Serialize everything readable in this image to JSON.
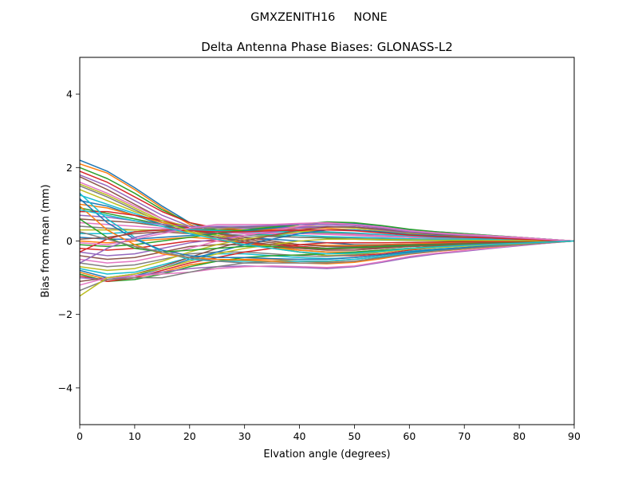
{
  "figure": {
    "suptitle": "GMXZENITH16     NONE"
  },
  "chart_data": {
    "type": "line",
    "title": "Delta Antenna Phase Biases: GLONASS-L2",
    "xlabel": "Elvation angle (degrees)",
    "ylabel": "Bias from mean (mm)",
    "xlim": [
      0,
      90
    ],
    "ylim": [
      -5,
      5
    ],
    "xticks": [
      0,
      10,
      20,
      30,
      40,
      50,
      60,
      70,
      80,
      90
    ],
    "xtick_labels": [
      "0",
      "10",
      "20",
      "30",
      "40",
      "50",
      "60",
      "70",
      "80",
      "90"
    ],
    "yticks": [
      -4,
      -2,
      0,
      2,
      4
    ],
    "ytick_labels": [
      "−4",
      "−2",
      "0",
      "2",
      "4"
    ],
    "grid": false,
    "x": [
      0,
      5,
      10,
      15,
      20,
      25,
      30,
      35,
      40,
      45,
      50,
      55,
      60,
      65,
      70,
      75,
      80,
      85,
      90
    ],
    "colors": [
      "#1f77b4",
      "#ff7f0e",
      "#2ca02c",
      "#d62728",
      "#9467bd",
      "#8c564b",
      "#e377c2",
      "#7f7f7f",
      "#bcbd22",
      "#17becf"
    ],
    "series": [
      {
        "values": [
          2.2,
          1.9,
          1.45,
          0.95,
          0.5,
          0.25,
          0.1,
          0.05,
          0.0,
          -0.05,
          -0.1,
          -0.1,
          -0.08,
          -0.06,
          -0.05,
          -0.04,
          -0.02,
          -0.01,
          0
        ]
      },
      {
        "values": [
          2.1,
          1.85,
          1.4,
          0.9,
          0.45,
          0.2,
          0.05,
          -0.05,
          -0.1,
          -0.12,
          -0.12,
          -0.1,
          -0.08,
          -0.06,
          -0.05,
          -0.04,
          -0.03,
          -0.01,
          0
        ]
      },
      {
        "values": [
          2.0,
          1.7,
          1.3,
          0.85,
          0.5,
          0.3,
          0.2,
          0.15,
          0.1,
          0.08,
          0.05,
          0.03,
          0.02,
          0.01,
          0.0,
          0.0,
          0.0,
          0.0,
          0
        ]
      },
      {
        "values": [
          1.9,
          1.6,
          1.2,
          0.8,
          0.5,
          0.35,
          0.3,
          0.3,
          0.28,
          0.25,
          0.2,
          0.15,
          0.1,
          0.08,
          0.05,
          0.04,
          0.03,
          0.01,
          0
        ]
      },
      {
        "values": [
          1.8,
          1.5,
          1.1,
          0.7,
          0.4,
          0.2,
          0.1,
          0.0,
          -0.1,
          -0.15,
          -0.18,
          -0.15,
          -0.12,
          -0.1,
          -0.08,
          -0.05,
          -0.03,
          -0.01,
          0
        ]
      },
      {
        "values": [
          1.75,
          1.4,
          1.0,
          0.6,
          0.3,
          0.15,
          0.05,
          -0.05,
          -0.15,
          -0.2,
          -0.2,
          -0.18,
          -0.15,
          -0.12,
          -0.1,
          -0.07,
          -0.05,
          -0.02,
          0
        ]
      },
      {
        "values": [
          1.6,
          1.3,
          0.95,
          0.6,
          0.35,
          0.25,
          0.22,
          0.22,
          0.2,
          0.18,
          0.15,
          0.12,
          0.1,
          0.08,
          0.06,
          0.05,
          0.03,
          0.01,
          0
        ]
      },
      {
        "values": [
          1.5,
          1.2,
          0.85,
          0.5,
          0.3,
          0.2,
          0.15,
          0.12,
          0.1,
          0.1,
          0.08,
          0.07,
          0.05,
          0.05,
          0.04,
          0.03,
          0.02,
          0.01,
          0
        ]
      },
      {
        "values": [
          1.4,
          1.1,
          0.8,
          0.55,
          0.4,
          0.35,
          0.35,
          0.38,
          0.4,
          0.4,
          0.35,
          0.28,
          0.2,
          0.15,
          0.12,
          0.1,
          0.07,
          0.03,
          0
        ]
      },
      {
        "values": [
          1.25,
          1.0,
          0.75,
          0.5,
          0.35,
          0.25,
          0.2,
          0.18,
          0.15,
          0.12,
          0.1,
          0.08,
          0.06,
          0.05,
          0.04,
          0.03,
          0.02,
          0.01,
          0
        ]
      },
      {
        "values": [
          1.1,
          0.95,
          0.7,
          0.45,
          0.25,
          0.1,
          -0.05,
          -0.15,
          -0.25,
          -0.3,
          -0.3,
          -0.25,
          -0.2,
          -0.15,
          -0.12,
          -0.08,
          -0.05,
          -0.02,
          0
        ]
      },
      {
        "values": [
          1.0,
          0.9,
          0.7,
          0.5,
          0.35,
          0.3,
          0.3,
          0.32,
          0.35,
          0.35,
          0.3,
          0.25,
          0.18,
          0.15,
          0.12,
          0.1,
          0.07,
          0.03,
          0
        ]
      },
      {
        "values": [
          0.9,
          0.75,
          0.6,
          0.45,
          0.35,
          0.3,
          0.28,
          0.27,
          0.25,
          0.22,
          0.18,
          0.15,
          0.12,
          0.1,
          0.08,
          0.06,
          0.04,
          0.02,
          0
        ]
      },
      {
        "values": [
          0.8,
          0.8,
          0.7,
          0.55,
          0.35,
          0.15,
          0.0,
          -0.15,
          -0.3,
          -0.4,
          -0.4,
          -0.35,
          -0.25,
          -0.18,
          -0.12,
          -0.08,
          -0.05,
          -0.02,
          0
        ]
      },
      {
        "values": [
          0.7,
          0.65,
          0.55,
          0.45,
          0.4,
          0.38,
          0.35,
          0.35,
          0.38,
          0.4,
          0.38,
          0.3,
          0.22,
          0.18,
          0.15,
          0.12,
          0.08,
          0.04,
          0
        ]
      },
      {
        "values": [
          0.6,
          0.55,
          0.5,
          0.4,
          0.3,
          0.2,
          0.1,
          0.0,
          -0.1,
          -0.15,
          -0.15,
          -0.12,
          -0.1,
          -0.08,
          -0.06,
          -0.04,
          -0.03,
          -0.01,
          0
        ]
      },
      {
        "values": [
          0.5,
          0.45,
          0.4,
          0.35,
          0.3,
          0.25,
          0.2,
          0.2,
          0.2,
          0.2,
          0.18,
          0.15,
          0.12,
          0.1,
          0.08,
          0.06,
          0.04,
          0.02,
          0
        ]
      },
      {
        "values": [
          0.4,
          0.35,
          0.3,
          0.3,
          0.32,
          0.35,
          0.38,
          0.4,
          0.45,
          0.5,
          0.48,
          0.4,
          0.3,
          0.22,
          0.18,
          0.14,
          0.1,
          0.05,
          0
        ]
      },
      {
        "values": [
          0.3,
          0.3,
          0.3,
          0.28,
          0.25,
          0.15,
          0.0,
          -0.15,
          -0.3,
          -0.4,
          -0.38,
          -0.3,
          -0.2,
          -0.15,
          -0.1,
          -0.07,
          -0.05,
          -0.02,
          0
        ]
      },
      {
        "values": [
          0.2,
          0.2,
          0.25,
          0.3,
          0.3,
          0.28,
          0.25,
          0.25,
          0.25,
          0.25,
          0.22,
          0.18,
          0.14,
          0.1,
          0.08,
          0.06,
          0.04,
          0.02,
          0
        ]
      },
      {
        "values": [
          0.1,
          0.05,
          0.05,
          0.1,
          0.15,
          0.2,
          0.28,
          0.35,
          0.45,
          0.5,
          0.48,
          0.4,
          0.3,
          0.25,
          0.2,
          0.15,
          0.1,
          0.05,
          0
        ]
      },
      {
        "values": [
          0.0,
          -0.05,
          0.0,
          0.05,
          0.1,
          0.05,
          -0.05,
          -0.15,
          -0.25,
          -0.3,
          -0.3,
          -0.25,
          -0.2,
          -0.15,
          -0.1,
          -0.07,
          -0.05,
          -0.02,
          0
        ]
      },
      {
        "values": [
          -0.1,
          -0.15,
          -0.1,
          0.0,
          0.1,
          0.2,
          0.3,
          0.38,
          0.45,
          0.52,
          0.5,
          0.42,
          0.32,
          0.25,
          0.2,
          0.15,
          0.1,
          0.05,
          0
        ]
      },
      {
        "values": [
          -0.2,
          -0.25,
          -0.2,
          -0.1,
          0.0,
          0.0,
          -0.05,
          -0.1,
          -0.15,
          -0.2,
          -0.2,
          -0.18,
          -0.15,
          -0.12,
          -0.1,
          -0.07,
          -0.05,
          -0.02,
          0
        ]
      },
      {
        "values": [
          -0.3,
          -0.4,
          -0.35,
          -0.2,
          -0.05,
          0.05,
          0.15,
          0.25,
          0.35,
          0.4,
          0.38,
          0.32,
          0.25,
          0.2,
          0.15,
          0.12,
          0.08,
          0.04,
          0
        ]
      },
      {
        "values": [
          -0.4,
          -0.5,
          -0.45,
          -0.3,
          -0.15,
          -0.1,
          -0.1,
          -0.15,
          -0.2,
          -0.22,
          -0.2,
          -0.18,
          -0.15,
          -0.12,
          -0.1,
          -0.07,
          -0.05,
          -0.02,
          0
        ]
      },
      {
        "values": [
          -0.5,
          -0.6,
          -0.55,
          -0.4,
          -0.2,
          0.0,
          0.15,
          0.28,
          0.4,
          0.48,
          0.45,
          0.38,
          0.28,
          0.22,
          0.18,
          0.14,
          0.1,
          0.05,
          0
        ]
      },
      {
        "values": [
          -0.6,
          -0.7,
          -0.65,
          -0.5,
          -0.35,
          -0.3,
          -0.3,
          -0.35,
          -0.4,
          -0.42,
          -0.38,
          -0.3,
          -0.22,
          -0.18,
          -0.14,
          -0.1,
          -0.07,
          -0.03,
          0
        ]
      },
      {
        "values": [
          -0.7,
          -0.8,
          -0.75,
          -0.55,
          -0.3,
          -0.1,
          0.05,
          0.15,
          0.25,
          0.3,
          0.3,
          0.25,
          0.2,
          0.15,
          0.12,
          0.09,
          0.06,
          0.03,
          0
        ]
      },
      {
        "values": [
          -0.75,
          -0.9,
          -0.85,
          -0.65,
          -0.45,
          -0.35,
          -0.35,
          -0.4,
          -0.45,
          -0.48,
          -0.45,
          -0.38,
          -0.28,
          -0.22,
          -0.18,
          -0.12,
          -0.08,
          -0.04,
          0
        ]
      },
      {
        "values": [
          -0.8,
          -1.0,
          -0.95,
          -0.75,
          -0.5,
          -0.3,
          -0.1,
          0.05,
          0.2,
          0.3,
          0.3,
          0.25,
          0.18,
          0.14,
          0.1,
          0.08,
          0.05,
          0.02,
          0
        ]
      },
      {
        "values": [
          -0.85,
          -1.05,
          -1.0,
          -0.85,
          -0.65,
          -0.55,
          -0.5,
          -0.5,
          -0.55,
          -0.58,
          -0.55,
          -0.45,
          -0.35,
          -0.28,
          -0.22,
          -0.15,
          -0.1,
          -0.05,
          0
        ]
      },
      {
        "values": [
          -0.9,
          -1.1,
          -1.05,
          -0.9,
          -0.7,
          -0.55,
          -0.45,
          -0.4,
          -0.38,
          -0.35,
          -0.3,
          -0.25,
          -0.2,
          -0.15,
          -0.12,
          -0.08,
          -0.05,
          -0.02,
          0
        ]
      },
      {
        "values": [
          -0.95,
          -1.1,
          -1.0,
          -0.8,
          -0.6,
          -0.45,
          -0.3,
          -0.2,
          -0.1,
          -0.05,
          -0.05,
          -0.05,
          -0.04,
          -0.03,
          -0.02,
          -0.02,
          -0.01,
          -0.01,
          0
        ]
      },
      {
        "values": [
          -1.0,
          -1.05,
          -0.95,
          -0.85,
          -0.75,
          -0.7,
          -0.68,
          -0.7,
          -0.72,
          -0.75,
          -0.7,
          -0.58,
          -0.45,
          -0.35,
          -0.28,
          -0.2,
          -0.13,
          -0.06,
          0
        ]
      },
      {
        "values": [
          -1.1,
          -1.0,
          -0.9,
          -0.7,
          -0.45,
          -0.2,
          0.0,
          0.15,
          0.3,
          0.38,
          0.38,
          0.32,
          0.24,
          0.18,
          0.14,
          0.1,
          0.07,
          0.03,
          0
        ]
      },
      {
        "values": [
          -1.2,
          -1.0,
          -0.95,
          -0.9,
          -0.85,
          -0.75,
          -0.7,
          -0.68,
          -0.7,
          -0.72,
          -0.68,
          -0.56,
          -0.42,
          -0.33,
          -0.26,
          -0.19,
          -0.12,
          -0.06,
          0
        ]
      },
      {
        "values": [
          -1.35,
          -1.05,
          -1.0,
          -1.0,
          -0.85,
          -0.7,
          -0.6,
          -0.55,
          -0.55,
          -0.55,
          -0.5,
          -0.42,
          -0.32,
          -0.25,
          -0.2,
          -0.15,
          -0.1,
          -0.05,
          0
        ]
      },
      {
        "values": [
          -1.5,
          -1.0,
          -0.9,
          -0.75,
          -0.55,
          -0.35,
          -0.2,
          -0.1,
          0.0,
          0.05,
          0.05,
          0.04,
          0.03,
          0.02,
          0.02,
          0.01,
          0.01,
          0.0,
          0
        ]
      },
      {
        "values": [
          1.3,
          0.6,
          0.1,
          -0.3,
          -0.5,
          -0.55,
          -0.55,
          -0.55,
          -0.55,
          -0.55,
          -0.5,
          -0.42,
          -0.32,
          -0.25,
          -0.2,
          -0.15,
          -0.1,
          -0.05,
          0
        ]
      },
      {
        "values": [
          1.15,
          0.5,
          0.05,
          -0.25,
          -0.4,
          -0.45,
          -0.45,
          -0.48,
          -0.5,
          -0.5,
          -0.45,
          -0.38,
          -0.3,
          -0.23,
          -0.18,
          -0.13,
          -0.09,
          -0.04,
          0
        ]
      },
      {
        "values": [
          0.95,
          0.3,
          -0.1,
          -0.35,
          -0.45,
          -0.5,
          -0.52,
          -0.55,
          -0.6,
          -0.62,
          -0.58,
          -0.48,
          -0.36,
          -0.28,
          -0.22,
          -0.16,
          -0.1,
          -0.05,
          0
        ]
      },
      {
        "values": [
          0.6,
          0.1,
          -0.2,
          -0.3,
          -0.25,
          -0.2,
          -0.15,
          -0.15,
          -0.18,
          -0.2,
          -0.18,
          -0.15,
          -0.12,
          -0.1,
          -0.08,
          -0.06,
          -0.04,
          -0.02,
          0
        ]
      },
      {
        "values": [
          -0.3,
          0.05,
          0.25,
          0.3,
          0.28,
          0.25,
          0.25,
          0.28,
          0.3,
          0.3,
          0.28,
          0.22,
          0.16,
          0.12,
          0.1,
          0.08,
          0.05,
          0.02,
          0
        ]
      },
      {
        "values": [
          -0.6,
          -0.2,
          0.1,
          0.25,
          0.35,
          0.4,
          0.4,
          0.42,
          0.45,
          0.45,
          0.42,
          0.35,
          0.25,
          0.2,
          0.15,
          0.12,
          0.08,
          0.04,
          0
        ]
      },
      {
        "values": [
          0.05,
          0.1,
          0.2,
          0.25,
          0.2,
          0.1,
          0.0,
          -0.1,
          -0.2,
          -0.25,
          -0.25,
          -0.2,
          -0.15,
          -0.12,
          -0.1,
          -0.07,
          -0.05,
          -0.02,
          0
        ]
      },
      {
        "values": [
          -0.05,
          -0.1,
          0.05,
          0.2,
          0.35,
          0.45,
          0.45,
          0.45,
          0.48,
          0.5,
          0.45,
          0.38,
          0.28,
          0.22,
          0.17,
          0.13,
          0.09,
          0.04,
          0
        ]
      },
      {
        "values": [
          0.25,
          0.05,
          -0.15,
          -0.3,
          -0.45,
          -0.55,
          -0.6,
          -0.6,
          -0.6,
          -0.6,
          -0.55,
          -0.45,
          -0.35,
          -0.27,
          -0.21,
          -0.15,
          -0.1,
          -0.05,
          0
        ]
      },
      {
        "values": [
          1.55,
          1.25,
          0.9,
          0.55,
          0.25,
          0.05,
          -0.1,
          -0.2,
          -0.3,
          -0.35,
          -0.35,
          -0.3,
          -0.22,
          -0.18,
          -0.14,
          -0.1,
          -0.07,
          -0.03,
          0
        ]
      },
      {
        "values": [
          0.85,
          0.7,
          0.55,
          0.4,
          0.2,
          0.05,
          -0.1,
          -0.2,
          -0.3,
          -0.35,
          -0.33,
          -0.28,
          -0.2,
          -0.16,
          -0.12,
          -0.09,
          -0.06,
          -0.03,
          0
        ]
      }
    ]
  }
}
